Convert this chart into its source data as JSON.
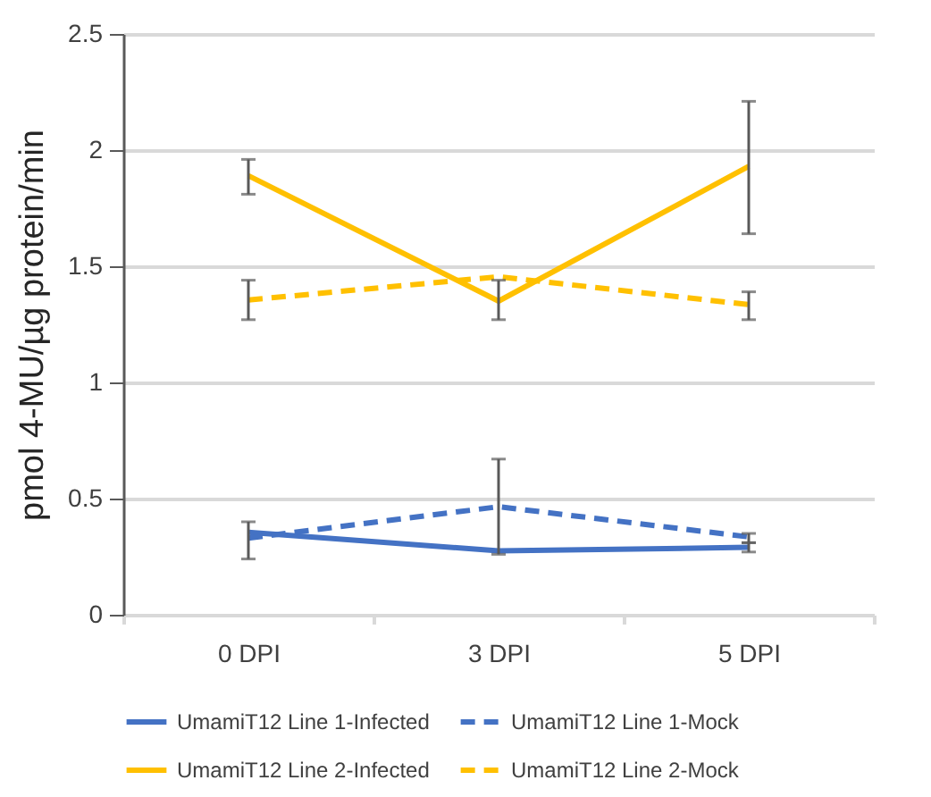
{
  "chart_data": {
    "type": "line",
    "ylabel": "pmol 4-MU/µg protein/min",
    "categories": [
      "0 DPI",
      "3 DPI",
      "5 DPI"
    ],
    "ylim": [
      0,
      2.5
    ],
    "yticks": [
      0,
      0.5,
      1,
      1.5,
      2,
      2.5
    ],
    "grid": "y",
    "legend": "bottom",
    "marker": "none",
    "series": [
      {
        "name": "UmamiT12 Line 1-Infected",
        "color": "#4472c4",
        "line_style": "solid",
        "values": [
          0.355,
          0.275,
          0.29
        ],
        "errors": [
          [
            0.24,
            0.4
          ],
          null,
          [
            0.27,
            0.31
          ]
        ]
      },
      {
        "name": "UmamiT12 Line 1-Mock",
        "color": "#4472c4",
        "line_style": "dashed",
        "values": [
          0.33,
          0.465,
          0.335
        ],
        "errors": [
          null,
          [
            0.26,
            0.67
          ],
          [
            0.31,
            0.35
          ]
        ]
      },
      {
        "name": "UmamiT12 Line 2-Infected",
        "color": "#ffc000",
        "line_style": "solid",
        "values": [
          1.89,
          1.35,
          1.93
        ],
        "errors": [
          [
            1.81,
            1.96
          ],
          [
            1.27,
            1.44
          ],
          [
            1.64,
            2.21
          ]
        ]
      },
      {
        "name": "UmamiT12 Line 2-Mock",
        "color": "#ffc000",
        "line_style": "dashed",
        "values": [
          1.355,
          1.455,
          1.335
        ],
        "errors": [
          [
            1.27,
            1.44
          ],
          null,
          [
            1.27,
            1.39
          ]
        ]
      }
    ]
  }
}
